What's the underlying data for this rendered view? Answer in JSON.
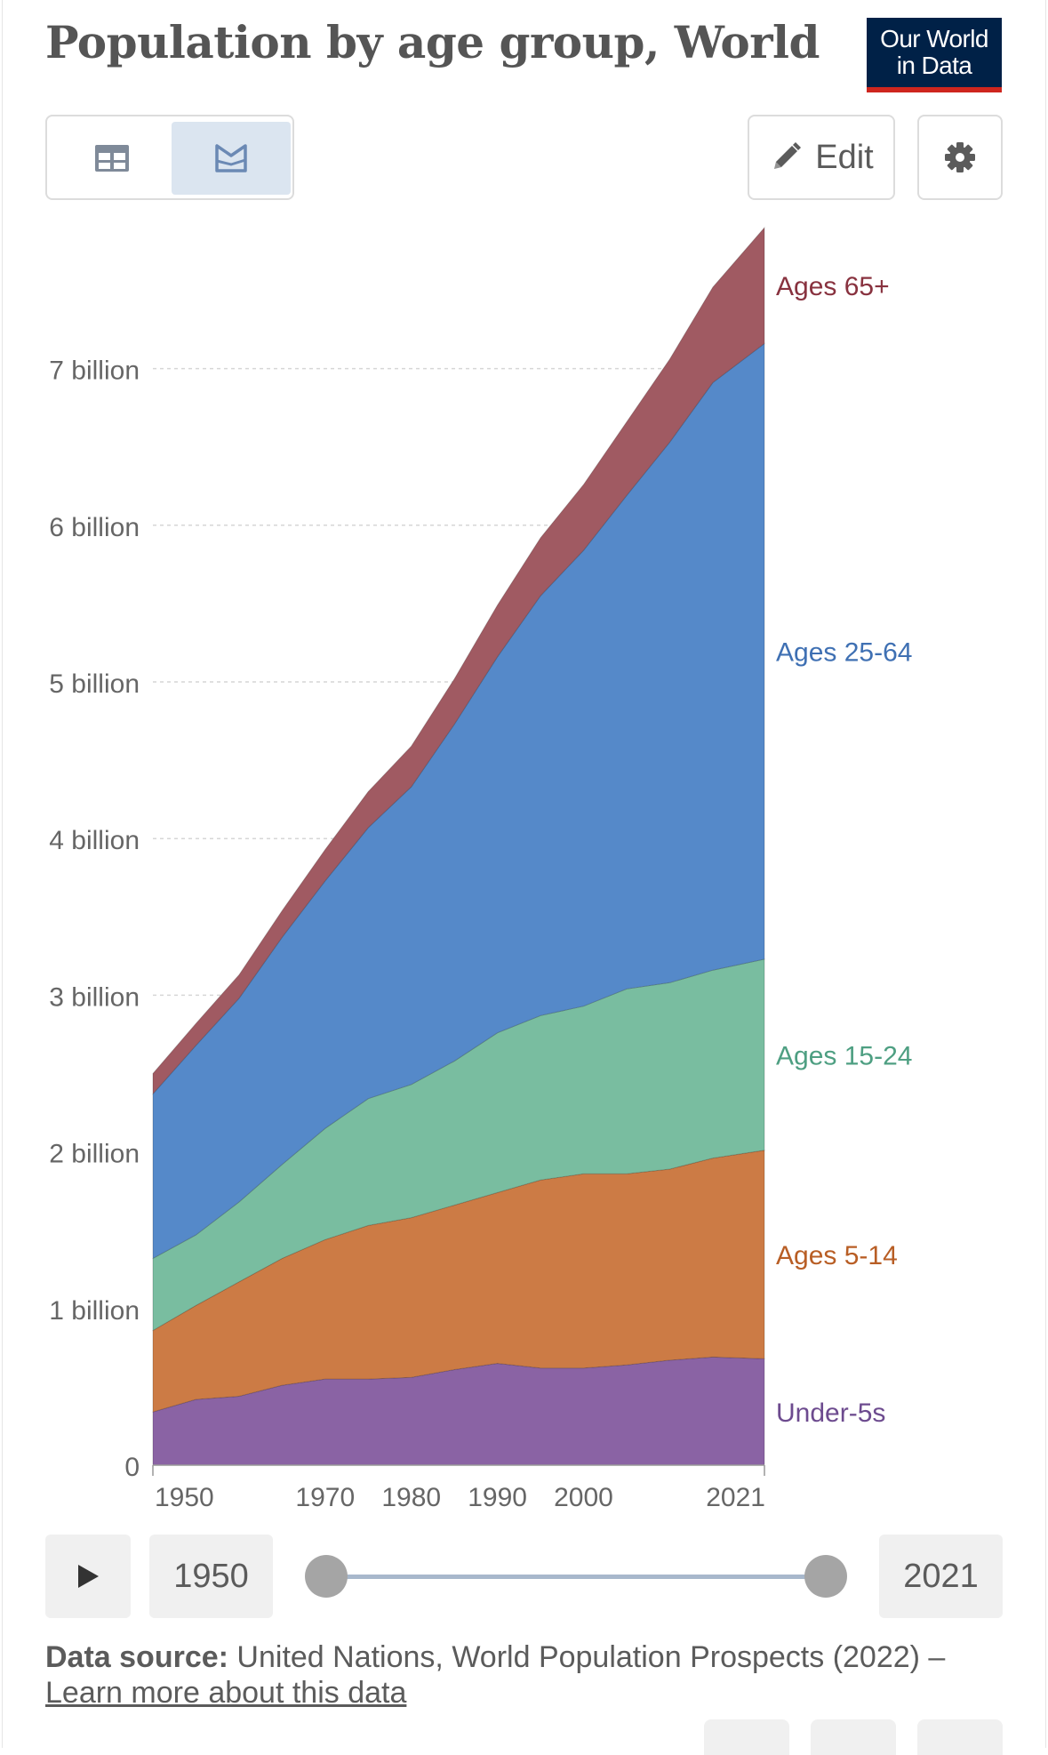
{
  "header": {
    "title": "Population by age group, World",
    "logo_line1": "Our World",
    "logo_line2": "in Data"
  },
  "toolbar": {
    "edit_label": "Edit",
    "active_view": "chart"
  },
  "colors": {
    "under5": "#8a63a4",
    "ages5_14": "#cc7b45",
    "ages15_24": "#79bda0",
    "ages25_64": "#5589c9",
    "ages65": "#a05a62",
    "label_under5": "#6d4b8f",
    "label_5_14": "#b85e25",
    "label_15_24": "#4e9f82",
    "label_25_64": "#3f70b3",
    "label_65": "#88323f"
  },
  "chart_data": {
    "type": "area",
    "stacked": true,
    "title": "Population by age group, World",
    "x": [
      1950,
      1955,
      1960,
      1965,
      1970,
      1975,
      1980,
      1985,
      1990,
      1995,
      2000,
      2005,
      2010,
      2015,
      2021
    ],
    "x_ticks": [
      "1950",
      "1970",
      "1980",
      "1990",
      "2000",
      "2021"
    ],
    "y_ticks": [
      "0",
      "1 billion",
      "2 billion",
      "3 billion",
      "4 billion",
      "5 billion",
      "6 billion",
      "7 billion"
    ],
    "y_tick_values": [
      0,
      1,
      2,
      3,
      4,
      5,
      6,
      7
    ],
    "ylim": [
      0,
      7.9
    ],
    "unit": "billion",
    "series": [
      {
        "name": "Under-5s",
        "key": "under5",
        "values": [
          0.34,
          0.42,
          0.44,
          0.51,
          0.55,
          0.55,
          0.56,
          0.61,
          0.65,
          0.62,
          0.62,
          0.64,
          0.67,
          0.69,
          0.68
        ]
      },
      {
        "name": "Ages 5-14",
        "key": "ages5_14",
        "values": [
          0.52,
          0.6,
          0.73,
          0.81,
          0.89,
          0.98,
          1.02,
          1.05,
          1.09,
          1.2,
          1.24,
          1.22,
          1.22,
          1.27,
          1.33
        ]
      },
      {
        "name": "Ages 15-24",
        "key": "ages15_24",
        "values": [
          0.46,
          0.45,
          0.51,
          0.6,
          0.71,
          0.81,
          0.85,
          0.92,
          1.02,
          1.05,
          1.07,
          1.18,
          1.19,
          1.2,
          1.22
        ]
      },
      {
        "name": "Ages 25-64",
        "key": "ages25_64",
        "values": [
          1.05,
          1.21,
          1.3,
          1.45,
          1.58,
          1.73,
          1.9,
          2.15,
          2.4,
          2.68,
          2.91,
          3.15,
          3.45,
          3.75,
          3.93
        ]
      },
      {
        "name": "Ages 65+",
        "key": "ages65",
        "values": [
          0.13,
          0.14,
          0.15,
          0.17,
          0.2,
          0.23,
          0.26,
          0.29,
          0.33,
          0.37,
          0.42,
          0.47,
          0.53,
          0.61,
          0.74
        ]
      }
    ]
  },
  "timeline": {
    "start_year": "1950",
    "end_year": "2021"
  },
  "source": {
    "label": "Data source:",
    "text": "United Nations, World Population Prospects (2022) –",
    "link": "Learn more about this data"
  }
}
